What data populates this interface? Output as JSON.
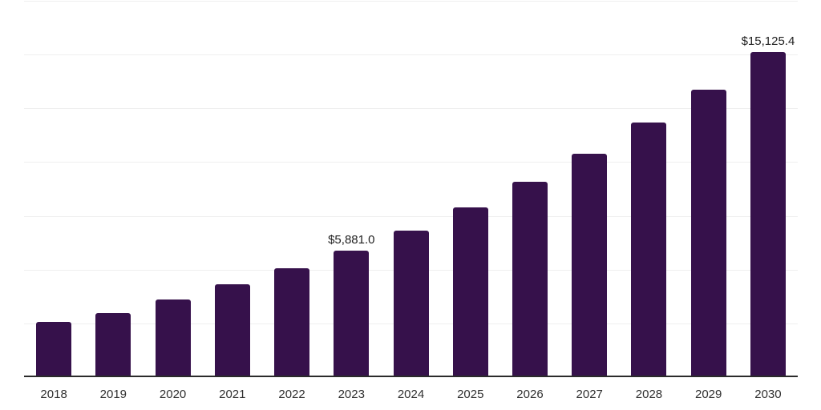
{
  "chart_data": {
    "type": "bar",
    "title": "",
    "xlabel": "",
    "ylabel": "",
    "categories": [
      "2018",
      "2019",
      "2020",
      "2021",
      "2022",
      "2023",
      "2024",
      "2025",
      "2026",
      "2027",
      "2028",
      "2029",
      "2030"
    ],
    "values": [
      2565.0,
      2975.0,
      3610.0,
      4315.0,
      5060.0,
      5881.0,
      6820.0,
      7890.0,
      9075.0,
      10380.0,
      11855.0,
      13365.0,
      15125.4
    ],
    "data_labels": [
      "",
      "",
      "",
      "",
      "",
      "$5,881.0",
      "",
      "",
      "",
      "",
      "",
      "",
      "$15,125.4"
    ],
    "ylim": [
      0,
      17500
    ],
    "grid_interval": 2500,
    "grid": true,
    "legend": "none",
    "colors": {
      "bar": "#36114B",
      "grid": "#efefef",
      "axis": "#2b2b2b",
      "data_label": "#1f1f1f",
      "tick_label": "#303030",
      "background": "#ffffff"
    }
  }
}
